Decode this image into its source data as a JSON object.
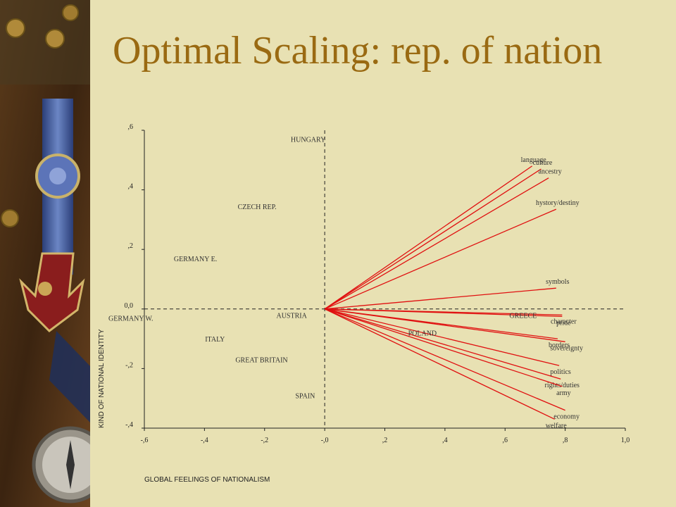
{
  "slide": {
    "title": "Optimal Scaling: rep. of nation"
  },
  "icons": [
    "medal-decoration-icon",
    "compass-icon",
    "buttons-decoration-icon"
  ],
  "colors": {
    "background": "#e8e1b3",
    "title": "#9a6a12",
    "vector": "#e01010",
    "axis": "#222222"
  },
  "chart_data": {
    "type": "scatter",
    "title": "",
    "xlabel": "GLOBAL FEELINGS OF NATIONALISM",
    "ylabel": "KIND OF NATIONAL IDENTITY",
    "xlim": [
      -0.6,
      1.0
    ],
    "ylim": [
      -0.4,
      0.6
    ],
    "x_ticks": [
      -0.6,
      -0.4,
      -0.2,
      0.0,
      0.2,
      0.4,
      0.6,
      0.8,
      1.0
    ],
    "x_tick_labels": [
      "-,6",
      "-,4",
      "-,2",
      "-,0",
      ",2",
      ",4",
      ",6",
      ",8",
      "1,0"
    ],
    "y_ticks": [
      0.6,
      0.4,
      0.2,
      0.0,
      -0.2,
      -0.4
    ],
    "y_tick_labels": [
      ",6",
      ",4",
      ",2",
      "0,0",
      "-,2",
      "-,4"
    ],
    "grid": false,
    "reference_lines": {
      "x": 0.0,
      "y": 0.0
    },
    "series": [
      {
        "name": "",
        "kind": "points",
        "points": [
          {
            "label": "HUNGARY",
            "x": -0.055,
            "y": 0.57
          },
          {
            "label": "CZECH REP.",
            "x": -0.225,
            "y": 0.345
          },
          {
            "label": "GERMANY E.",
            "x": -0.43,
            "y": 0.17
          },
          {
            "label": "AUSTRIA",
            "x": -0.11,
            "y": -0.02
          },
          {
            "label": "GERMANY W.",
            "x": -0.645,
            "y": -0.03
          },
          {
            "label": "ITALY",
            "x": -0.365,
            "y": -0.1
          },
          {
            "label": "GREAT BRITAIN",
            "x": -0.21,
            "y": -0.17
          },
          {
            "label": "SPAIN",
            "x": -0.065,
            "y": -0.29
          },
          {
            "label": "POLAND",
            "x": 0.325,
            "y": -0.08
          },
          {
            "label": "GREECE",
            "x": 0.66,
            "y": -0.02
          }
        ]
      },
      {
        "name": "",
        "kind": "vectors",
        "origin": [
          0.0,
          0.0
        ],
        "points": [
          {
            "label": "language",
            "x": 0.69,
            "y": 0.48
          },
          {
            "label": "culture",
            "x": 0.72,
            "y": 0.47
          },
          {
            "label": "ancestry",
            "x": 0.745,
            "y": 0.44
          },
          {
            "label": "hystory/destiny",
            "x": 0.77,
            "y": 0.335
          },
          {
            "label": "symbols",
            "x": 0.77,
            "y": 0.07
          },
          {
            "label": "character",
            "x": 0.79,
            "y": -0.02
          },
          {
            "label": "pride",
            "x": 0.79,
            "y": -0.025
          },
          {
            "label": "borders",
            "x": 0.775,
            "y": -0.1
          },
          {
            "label": "sovereignty",
            "x": 0.8,
            "y": -0.11
          },
          {
            "label": "politics",
            "x": 0.78,
            "y": -0.19
          },
          {
            "label": "rights/duties",
            "x": 0.785,
            "y": -0.235
          },
          {
            "label": "army",
            "x": 0.79,
            "y": -0.26
          },
          {
            "label": "economy",
            "x": 0.8,
            "y": -0.34
          },
          {
            "label": "welfare",
            "x": 0.765,
            "y": -0.37
          }
        ]
      }
    ]
  }
}
